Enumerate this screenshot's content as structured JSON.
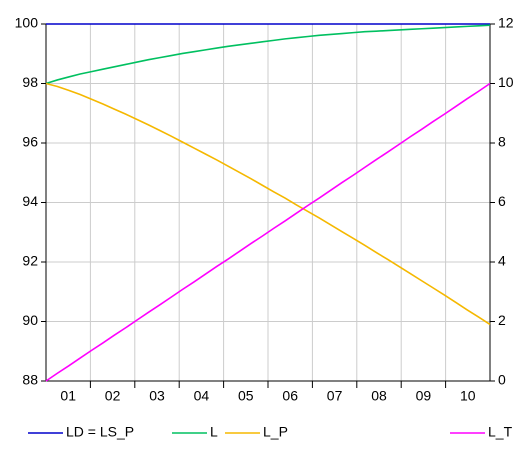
{
  "chart_data": {
    "type": "line",
    "categories": [
      null,
      "01",
      null,
      null,
      null,
      "02",
      null,
      null,
      null,
      "03",
      null,
      null,
      null,
      "04",
      null,
      null,
      null,
      "05",
      null,
      null,
      null,
      "06",
      null,
      null,
      null,
      "07",
      null,
      null,
      null,
      "08",
      null,
      null,
      null,
      "09",
      null,
      null,
      null,
      "10",
      null,
      null
    ],
    "ylim": [
      88,
      100
    ],
    "yticks": [
      88,
      90,
      92,
      94,
      96,
      98,
      100
    ],
    "y2lim": [
      0,
      12
    ],
    "y2ticks": [
      0,
      2,
      4,
      6,
      8,
      10,
      12
    ],
    "grid": true,
    "series": [
      {
        "name": "LD = LS_P",
        "color": "#0000cc",
        "values": [
          100,
          100,
          100,
          100,
          100,
          100,
          100,
          100,
          100,
          100,
          100,
          100,
          100,
          100,
          100,
          100,
          100,
          100,
          100,
          100,
          100,
          100,
          100,
          100,
          100,
          100,
          100,
          100,
          100,
          100,
          100,
          100,
          100,
          100,
          100,
          100,
          100,
          100,
          100,
          100
        ]
      },
      {
        "name": "L",
        "color": "#00c060",
        "values": [
          98.0,
          98.12,
          98.22,
          98.32,
          98.4,
          98.48,
          98.56,
          98.64,
          98.72,
          98.8,
          98.87,
          98.94,
          99.01,
          99.07,
          99.13,
          99.19,
          99.25,
          99.3,
          99.35,
          99.4,
          99.45,
          99.5,
          99.54,
          99.58,
          99.62,
          99.65,
          99.68,
          99.71,
          99.74,
          99.76,
          99.78,
          99.8,
          99.82,
          99.84,
          99.86,
          99.88,
          99.9,
          99.92,
          99.94,
          99.96
        ]
      },
      {
        "name": "L_P",
        "color": "#f5b800",
        "values": [
          98.0,
          97.9,
          97.77,
          97.63,
          97.47,
          97.31,
          97.14,
          96.97,
          96.79,
          96.61,
          96.42,
          96.23,
          96.03,
          95.83,
          95.63,
          95.43,
          95.22,
          95.01,
          94.8,
          94.58,
          94.36,
          94.15,
          93.92,
          93.7,
          93.48,
          93.25,
          93.02,
          92.79,
          92.56,
          92.32,
          92.09,
          91.85,
          91.61,
          91.37,
          91.13,
          90.89,
          90.64,
          90.39,
          90.15,
          89.9
        ]
      },
      {
        "name": "L_T",
        "color": "#ff00ff",
        "axis": "y2",
        "values": [
          0,
          0.26,
          0.51,
          0.77,
          1.03,
          1.28,
          1.54,
          1.79,
          2.05,
          2.31,
          2.56,
          2.82,
          3.08,
          3.33,
          3.59,
          3.85,
          4.1,
          4.36,
          4.62,
          4.87,
          5.13,
          5.38,
          5.64,
          5.9,
          6.15,
          6.41,
          6.67,
          6.92,
          7.18,
          7.44,
          7.69,
          7.95,
          8.21,
          8.46,
          8.72,
          8.97,
          9.23,
          9.49,
          9.74,
          10.0
        ]
      }
    ]
  }
}
